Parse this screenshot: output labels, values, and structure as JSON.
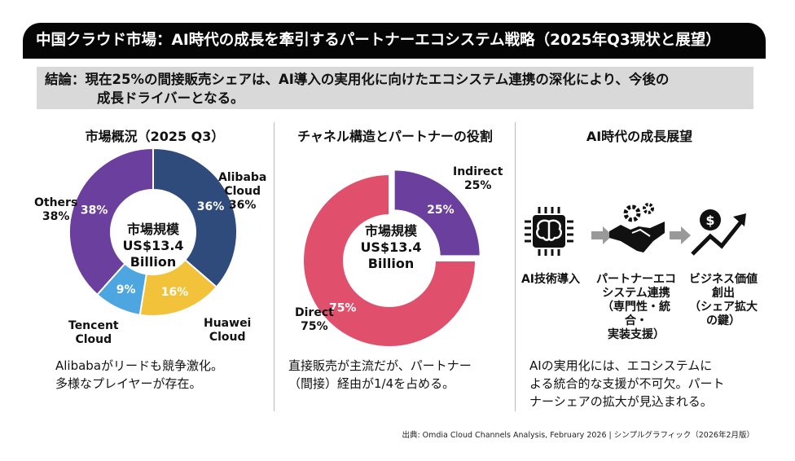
{
  "header": {
    "title": "中国クラウド市場：AI時代の成長を牽引するパートナーエコシステム戦略（2025年Q3現状と展望）"
  },
  "conclusion": {
    "line1": "結論：現在25%の間接販売シェアは、AI導入の実用化に向けたエコシステム連携の深化により、今後の",
    "line2": "成長ドライバーとなる。"
  },
  "columns": [
    {
      "title": "市場概況（2025 Q3）",
      "caption1": "Alibabaがリードも競争激化。",
      "caption2": "多様なプレイヤーが存在。"
    },
    {
      "title": "チャネル構造とパートナーの役割",
      "caption1": "直接販売が主流だが、パートナー",
      "caption2": "（間接）経由が1/4を占める。"
    },
    {
      "title": "AI時代の成長展望",
      "caption1": "AIの実用化には、エコシステムに",
      "caption2": "よる統合的な支援が不可欠。パート",
      "caption3": "ナーシェアの拡大が見込まれる。"
    }
  ],
  "chart_data": [
    {
      "type": "pie",
      "title": "市場概況（2025 Q3）",
      "center": {
        "line1": "市場規模",
        "line2": "US$13.4",
        "line3": "Billion"
      },
      "labels": [
        "Alibaba Cloud",
        "Huawei Cloud",
        "Tencent Cloud",
        "Others"
      ],
      "values": [
        36,
        16,
        9,
        38
      ],
      "colors": [
        "#2f4b7c",
        "#f2c23a",
        "#4da6e0",
        "#6b3f9e"
      ],
      "outer_labels": [
        [
          "Alibaba",
          "Cloud",
          "36%"
        ],
        [
          "Huawei",
          "Cloud"
        ],
        [
          "Tencent",
          "Cloud"
        ],
        [
          "Others",
          "38%"
        ]
      ]
    },
    {
      "type": "pie",
      "title": "チャネル構造とパートナーの役割",
      "center": {
        "line1": "市場規模",
        "line2": "US$13.4",
        "line3": "Billion"
      },
      "labels": [
        "Indirect",
        "Direct"
      ],
      "values": [
        25,
        75
      ],
      "colors": [
        "#6b3f9e",
        "#e0506c"
      ],
      "outer_labels": [
        [
          "Indirect",
          "25%"
        ],
        [
          "Direct",
          "75%"
        ]
      ]
    }
  ],
  "flow": {
    "steps": [
      {
        "icon": "ai-chip-brain-icon",
        "label": [
          "AI技術導入"
        ]
      },
      {
        "icon": "handshake-gears-icon",
        "label": [
          "パートナーエコ",
          "システム連携",
          "（専門性・統合・",
          "実装支援）"
        ]
      },
      {
        "icon": "dollar-growth-icon",
        "label": [
          "ビジネス価値",
          "創出",
          "（シェア拡大",
          "の鍵）"
        ]
      }
    ]
  },
  "source": "出典: Omdia Cloud Channels Analysis, February 2026 | シンプルグラフィック（2026年2月版）"
}
